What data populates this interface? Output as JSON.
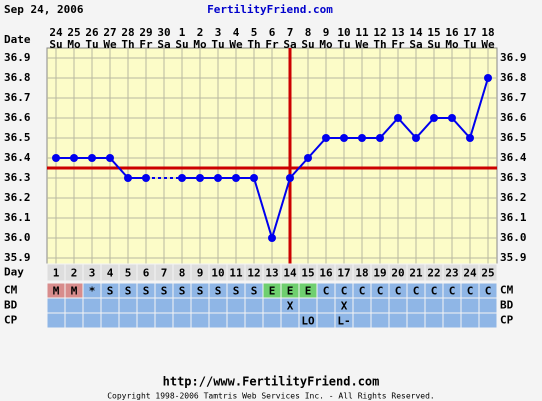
{
  "header": {
    "date": "Sep 24, 2006",
    "site": "FertilityFriend.com"
  },
  "chart_data": {
    "type": "line",
    "row_labels": {
      "date": "Date",
      "day": "Day",
      "cm": "CM",
      "bd": "BD",
      "cp": "CP"
    },
    "dates": [
      24,
      25,
      26,
      27,
      28,
      29,
      30,
      1,
      2,
      3,
      4,
      5,
      6,
      7,
      8,
      9,
      10,
      11,
      12,
      13,
      14,
      15,
      16,
      17,
      18
    ],
    "weekdays": [
      "Su",
      "Mo",
      "Tu",
      "We",
      "Th",
      "Fr",
      "Sa",
      "Su",
      "Mo",
      "Tu",
      "We",
      "Th",
      "Fr",
      "Sa",
      "Su",
      "Mo",
      "Tu",
      "We",
      "Th",
      "Fr",
      "Sa",
      "Su",
      "Mo",
      "Tu",
      "We"
    ],
    "days": [
      1,
      2,
      3,
      4,
      5,
      6,
      7,
      8,
      9,
      10,
      11,
      12,
      13,
      14,
      15,
      16,
      17,
      18,
      19,
      20,
      21,
      22,
      23,
      24,
      25
    ],
    "values": [
      36.4,
      36.4,
      36.4,
      36.4,
      36.3,
      36.3,
      null,
      36.3,
      36.3,
      36.3,
      36.3,
      36.3,
      36.0,
      36.3,
      36.4,
      36.5,
      36.5,
      36.5,
      36.5,
      36.6,
      36.5,
      36.6,
      36.6,
      36.5,
      36.8
    ],
    "color": "#0000ee",
    "ylim": [
      35.85,
      36.95
    ],
    "yticks": [
      35.9,
      {
        "value": 36,
        "label": "36.0"
      },
      36.1,
      36.2,
      36.3,
      36.4,
      36.5,
      36.6,
      36.7,
      36.8,
      36.9
    ],
    "grid": true,
    "coverline": 36.35,
    "ovulation_day": 14,
    "marker_line_color": "#cc0000",
    "cm": [
      "M",
      "M",
      "*",
      "S",
      "S",
      "S",
      "S",
      "S",
      "S",
      "S",
      "S",
      "S",
      "E",
      "E",
      "E",
      "C",
      "C",
      "C",
      "C",
      "C",
      "C",
      "C",
      "C",
      "C",
      "C"
    ],
    "cm_colors": {
      "M": "#d88c8c",
      "*": "#8fb6e6",
      "S": "#8fb6e6",
      "E": "#6fcf6f",
      "C": "#8fb6e6"
    },
    "bd": [
      null,
      null,
      null,
      null,
      null,
      null,
      null,
      null,
      null,
      null,
      null,
      null,
      null,
      "X",
      null,
      null,
      "X",
      null,
      null,
      null,
      null,
      null,
      null,
      null,
      null
    ],
    "cp": [
      null,
      null,
      null,
      null,
      null,
      null,
      null,
      null,
      null,
      null,
      null,
      null,
      null,
      null,
      "LO",
      null,
      "L-",
      null,
      null,
      null,
      null,
      null,
      null,
      null,
      null
    ]
  },
  "footer": {
    "url": "http://www.FertilityFriend.com",
    "copyright": "Copyright 1998-2006 Tamtris Web Services Inc. - All Rights Reserved."
  }
}
